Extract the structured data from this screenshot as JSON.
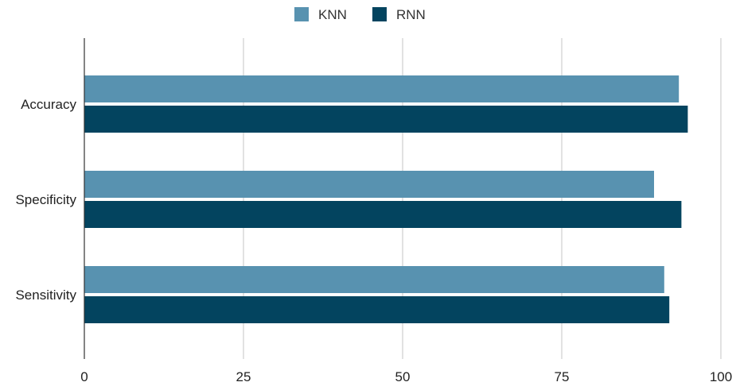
{
  "chart_data": {
    "type": "bar",
    "orientation": "horizontal",
    "categories": [
      "Accuracy",
      "Specificity",
      "Sensitivity"
    ],
    "series": [
      {
        "name": "KNN",
        "values": [
          93.4,
          89.5,
          91.1
        ],
        "color": "#5892b0"
      },
      {
        "name": "RNN",
        "values": [
          94.8,
          93.8,
          91.9
        ],
        "color": "#03445f"
      }
    ],
    "xlim": [
      0,
      100
    ],
    "xticks": [
      0,
      25,
      50,
      75,
      100
    ],
    "xtick_labels": [
      "0",
      "25",
      "50",
      "75",
      "100"
    ],
    "grid": true,
    "legend_position": "top-center",
    "title": "",
    "xlabel": "",
    "ylabel": ""
  }
}
